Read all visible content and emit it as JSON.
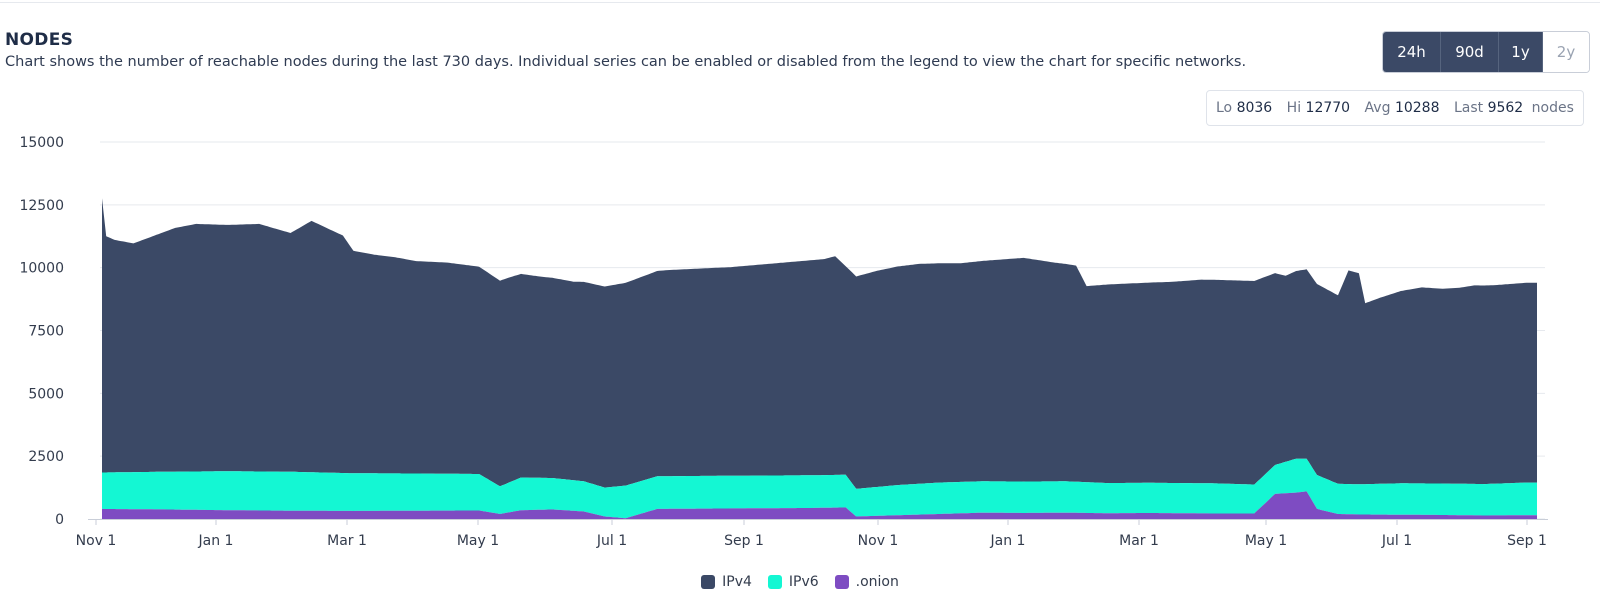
{
  "header": {
    "title": "NODES",
    "subtitle": "Chart shows the number of reachable nodes during the last 730 days. Individual series can be enabled or disabled from the legend to view the chart for specific networks."
  },
  "range_buttons": [
    {
      "label": "24h",
      "active": true
    },
    {
      "label": "90d",
      "active": true
    },
    {
      "label": "1y",
      "active": true
    },
    {
      "label": "2y",
      "active": false
    }
  ],
  "stats": {
    "lo_label": "Lo",
    "lo": "8036",
    "hi_label": "Hi",
    "hi": "12770",
    "avg_label": "Avg",
    "avg": "10288",
    "last_label": "Last",
    "last": "9562",
    "unit": "nodes"
  },
  "colors": {
    "ipv4": "#3b4966",
    "ipv6": "#14f7d3",
    "onion": "#7e4cc2",
    "grid": "#e6e9ee",
    "axis": "#c9ced8"
  },
  "chart_data": {
    "type": "area",
    "stacked": true,
    "grid": true,
    "legend_position": "bottom",
    "ylim": [
      0,
      15000
    ],
    "y_ticks": [
      15000,
      12500,
      10000,
      7500,
      5000,
      2500,
      0
    ],
    "y_tick_labels": [
      "15000",
      "12500",
      "10000",
      "7500",
      "5000",
      "2500",
      "0"
    ],
    "x_ticks": [
      "Nov 1",
      "Jan 1",
      "Mar 1",
      "May 1",
      "Jul 1",
      "Sep 1",
      "Nov 1",
      "Jan 1",
      "Mar 1",
      "May 1",
      "Jul 1",
      "Sep 1"
    ],
    "x_range": [
      "Nov 1",
      "Sep 15"
    ],
    "series": [
      {
        "name": "IPv4",
        "x": [
          0,
          2,
          6,
          15,
          25,
          35,
          45,
          60,
          75,
          90,
          100,
          115,
          120,
          130,
          140,
          150,
          165,
          180,
          195,
          210,
          225,
          240,
          255,
          270,
          285,
          300,
          315,
          330,
          345,
          350,
          355,
          360,
          370,
          380,
          390,
          410,
          425,
          440,
          455,
          465,
          470,
          480,
          495,
          510,
          525,
          540,
          550,
          565,
          580,
          590,
          595,
          600,
          603,
          610,
          620,
          630,
          640,
          648,
          655,
          665,
          680
        ],
        "values": [
          10910,
          9400,
          9250,
          9100,
          9400,
          9700,
          9850,
          9800,
          9850,
          9500,
          10000,
          9450,
          8850,
          8700,
          8600,
          8450,
          8400,
          8250,
          8150,
          8000,
          7900,
          8000,
          8100,
          8200,
          8250,
          8300,
          8400,
          8500,
          8600,
          8700,
          8300,
          8450,
          8600,
          8700,
          8750,
          8700,
          8800,
          8900,
          8700,
          8600,
          7800,
          7900,
          7950,
          8000,
          8100,
          8100,
          8100,
          7400,
          7600,
          7500,
          8500,
          8400,
          7200,
          7400,
          7650,
          7800,
          7750,
          7800,
          7900,
          7900,
          7950
        ]
      },
      {
        "name": "IPv6",
        "x": [
          0,
          30,
          60,
          90,
          120,
          150,
          180,
          190,
          200,
          215,
          230,
          240,
          250,
          265,
          280,
          300,
          320,
          340,
          355,
          360,
          380,
          400,
          420,
          440,
          460,
          480,
          500,
          530,
          550,
          560,
          570,
          575,
          580,
          590,
          600,
          620,
          640,
          660,
          680
        ],
        "values": [
          1450,
          1500,
          1550,
          1550,
          1500,
          1480,
          1450,
          1100,
          1300,
          1250,
          1200,
          1150,
          1300,
          1300,
          1300,
          1300,
          1300,
          1300,
          1300,
          1100,
          1200,
          1250,
          1250,
          1250,
          1250,
          1200,
          1200,
          1200,
          1150,
          1150,
          1350,
          1300,
          1350,
          1200,
          1200,
          1250,
          1250,
          1250,
          1300
        ]
      },
      {
        "name": ".onion",
        "x": [
          0,
          30,
          60,
          90,
          120,
          150,
          180,
          190,
          200,
          215,
          230,
          240,
          250,
          265,
          280,
          300,
          320,
          340,
          355,
          360,
          380,
          400,
          420,
          440,
          460,
          480,
          500,
          530,
          550,
          560,
          570,
          575,
          580,
          590,
          600,
          620,
          640,
          660,
          680
        ],
        "values": [
          400,
          380,
          350,
          330,
          320,
          330,
          340,
          200,
          350,
          380,
          300,
          100,
          30,
          400,
          410,
          420,
          430,
          440,
          460,
          100,
          150,
          200,
          250,
          240,
          250,
          230,
          240,
          220,
          220,
          1000,
          1050,
          1100,
          400,
          200,
          180,
          170,
          160,
          140,
          150
        ]
      }
    ]
  }
}
